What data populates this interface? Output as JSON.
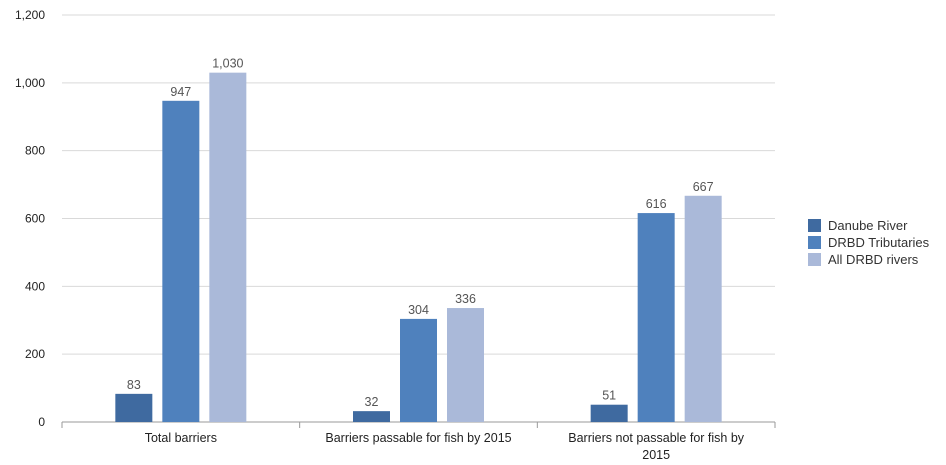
{
  "chart_data": {
    "type": "bar",
    "categories": [
      "Total barriers",
      "Barriers passable for fish by 2015",
      "Barriers not passable for fish by 2015"
    ],
    "category_lines": [
      [
        "Total barriers"
      ],
      [
        "Barriers passable for fish by 2015"
      ],
      [
        "Barriers not passable for fish by",
        "2015"
      ]
    ],
    "series": [
      {
        "name": "Danube River",
        "values": [
          83,
          32,
          51
        ],
        "labels": [
          "83",
          "32",
          "51"
        ],
        "color": "#3f6aa0"
      },
      {
        "name": "DRBD Tributaries",
        "values": [
          947,
          304,
          616
        ],
        "labels": [
          "947",
          "304",
          "616"
        ],
        "color": "#4f81bd"
      },
      {
        "name": "All DRBD rivers",
        "values": [
          1030,
          336,
          667
        ],
        "labels": [
          "1,030",
          "336",
          "667"
        ],
        "color": "#aab9d9"
      }
    ],
    "ylim": [
      0,
      1200
    ],
    "yticks": [
      0,
      200,
      400,
      600,
      800,
      1000,
      1200
    ],
    "ytick_labels": [
      "0",
      "200",
      "400",
      "600",
      "800",
      "1,000",
      "1,200"
    ],
    "grid": true,
    "legend_position": "right",
    "title": "",
    "xlabel": "",
    "ylabel": ""
  }
}
